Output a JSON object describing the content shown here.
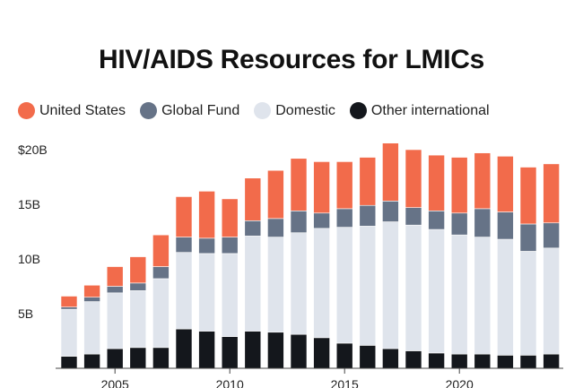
{
  "chart_data": {
    "type": "bar",
    "stacked": true,
    "title": "HIV/AIDS Resources for LMICs",
    "xlabel": "",
    "ylabel": "",
    "ylim": [
      0,
      20
    ],
    "yticks": [
      {
        "value": 5,
        "label": "5B"
      },
      {
        "value": 10,
        "label": "10B"
      },
      {
        "value": 15,
        "label": "15B"
      },
      {
        "value": 20,
        "label": "$20B"
      }
    ],
    "xticks": [
      {
        "value": 2005,
        "label": "2005"
      },
      {
        "value": 2010,
        "label": "2010"
      },
      {
        "value": 2015,
        "label": "2015"
      },
      {
        "value": 2020,
        "label": "2020"
      }
    ],
    "legend_position": "top-left",
    "categories": [
      2003,
      2004,
      2005,
      2006,
      2007,
      2008,
      2009,
      2010,
      2011,
      2012,
      2013,
      2014,
      2015,
      2016,
      2017,
      2018,
      2019,
      2020,
      2021,
      2022,
      2023,
      2024
    ],
    "series": [
      {
        "name": "Other international",
        "color": "#14171c",
        "values": [
          1.1,
          1.3,
          1.8,
          1.9,
          1.9,
          3.6,
          3.4,
          2.9,
          3.4,
          3.3,
          3.1,
          2.8,
          2.3,
          2.1,
          1.8,
          1.6,
          1.4,
          1.3,
          1.3,
          1.2,
          1.2,
          1.3
        ]
      },
      {
        "name": "Domestic",
        "color": "#dfe4ec",
        "values": [
          4.3,
          4.8,
          5.1,
          5.2,
          6.3,
          7.0,
          7.1,
          7.6,
          8.7,
          8.7,
          9.3,
          10.0,
          10.6,
          10.9,
          11.6,
          11.5,
          11.3,
          10.9,
          10.7,
          10.6,
          9.5,
          9.7
        ]
      },
      {
        "name": "Global Fund",
        "color": "#667387",
        "values": [
          0.2,
          0.4,
          0.6,
          0.7,
          1.1,
          1.4,
          1.4,
          1.5,
          1.4,
          1.7,
          2.0,
          1.4,
          1.7,
          1.9,
          1.9,
          1.6,
          1.7,
          2.0,
          2.6,
          2.5,
          2.5,
          2.3
        ]
      },
      {
        "name": "United States",
        "color": "#f26b4b",
        "values": [
          1.0,
          1.1,
          1.8,
          2.4,
          2.9,
          3.7,
          4.3,
          3.5,
          3.9,
          4.4,
          4.8,
          4.7,
          4.3,
          4.4,
          5.3,
          5.3,
          5.1,
          5.1,
          5.1,
          5.1,
          5.2,
          5.4
        ]
      }
    ]
  },
  "legend": [
    {
      "label": "United States",
      "color": "#f26b4b"
    },
    {
      "label": "Global Fund",
      "color": "#667387"
    },
    {
      "label": "Domestic",
      "color": "#dfe4ec"
    },
    {
      "label": "Other international",
      "color": "#14171c"
    }
  ]
}
